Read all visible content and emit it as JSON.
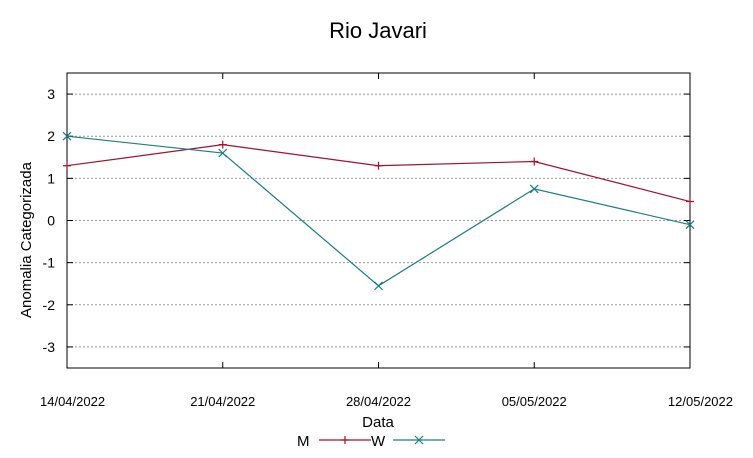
{
  "chart_data": {
    "type": "line",
    "title": "Rio Javari",
    "xlabel": "Data",
    "ylabel": "Anomalia Categorizada",
    "x": [
      "14/04/2022",
      "21/04/2022",
      "28/04/2022",
      "05/05/2022",
      "12/05/2022"
    ],
    "yticks": [
      "3",
      "2",
      "1",
      "0",
      "-1",
      "-2",
      "-3"
    ],
    "ylim": [
      -3.5,
      3.5
    ],
    "grid": true,
    "legend_position": "bottom",
    "series": [
      {
        "name": "M",
        "color": "#a0132c",
        "marker": "plus",
        "values": [
          1.3,
          1.8,
          1.3,
          1.4,
          0.45
        ]
      },
      {
        "name": "W",
        "color": "#1c7d86",
        "marker": "cross",
        "values": [
          2.0,
          1.6,
          -1.55,
          0.75,
          -0.1
        ]
      }
    ]
  }
}
